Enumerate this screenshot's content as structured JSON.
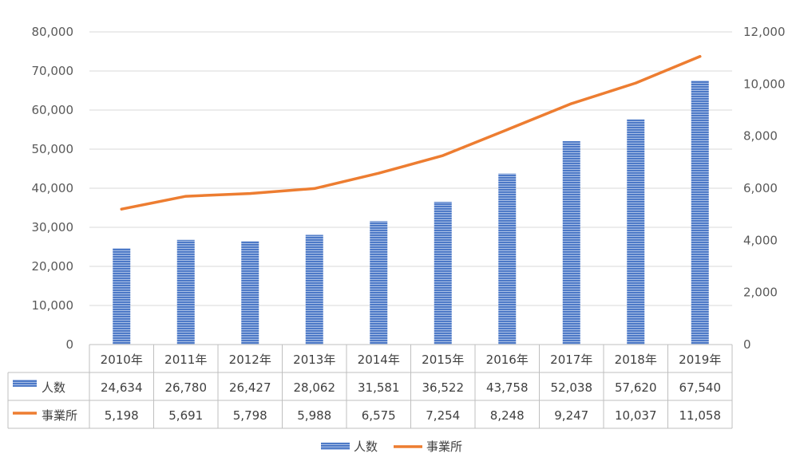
{
  "chart_data": {
    "type": "bar",
    "categories": [
      "2010年",
      "2011年",
      "2012年",
      "2013年",
      "2014年",
      "2015年",
      "2016年",
      "2017年",
      "2018年",
      "2019年"
    ],
    "series": [
      {
        "name": "人数",
        "type": "bar",
        "axis": "left",
        "color": "#4472C4",
        "values": [
          24634,
          26780,
          26427,
          28062,
          31581,
          36522,
          43758,
          52038,
          57620,
          67540
        ],
        "labels": [
          "24,634",
          "26,780",
          "26,427",
          "28,062",
          "31,581",
          "36,522",
          "43,758",
          "52,038",
          "57,620",
          "67,540"
        ]
      },
      {
        "name": "事業所",
        "type": "line",
        "axis": "right",
        "color": "#ED7D31",
        "values": [
          5198,
          5691,
          5798,
          5988,
          6575,
          7254,
          8248,
          9247,
          10037,
          11058
        ],
        "labels": [
          "5,198",
          "5,691",
          "5,798",
          "5,988",
          "6,575",
          "7,254",
          "8,248",
          "9,247",
          "10,037",
          "11,058"
        ]
      }
    ],
    "ylim": [
      0,
      80000
    ],
    "y2lim": [
      0,
      12000
    ],
    "yticks": [
      "0",
      "10,000",
      "20,000",
      "30,000",
      "40,000",
      "50,000",
      "60,000",
      "70,000",
      "80,000"
    ],
    "y2ticks": [
      "0",
      "2,000",
      "4,000",
      "6,000",
      "8,000",
      "10,000",
      "12,000"
    ],
    "grid": true,
    "data_table": true,
    "legend": "bottom"
  }
}
